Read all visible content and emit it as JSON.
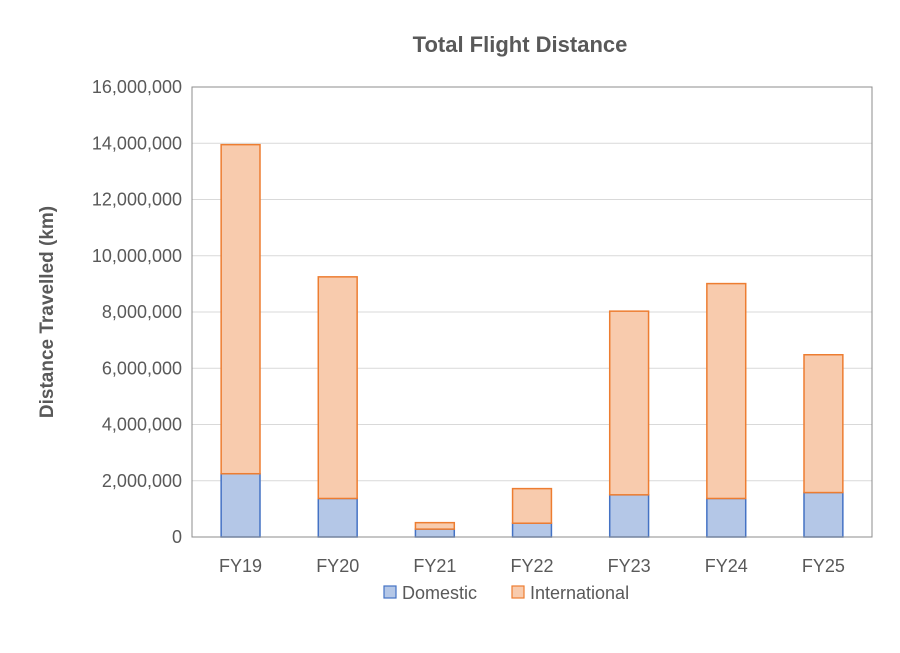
{
  "chart_data": {
    "type": "bar",
    "stacked": true,
    "title": "Total Flight Distance",
    "xlabel": "",
    "ylabel": "Distance Travelled (km)",
    "ylim": [
      0,
      16000000
    ],
    "ytick_step": 2000000,
    "grid": true,
    "legend_position": "bottom",
    "categories": [
      "FY19",
      "FY20",
      "FY21",
      "FY22",
      "FY23",
      "FY24",
      "FY25"
    ],
    "series": [
      {
        "name": "Domestic",
        "values": [
          2250000,
          1370000,
          280000,
          490000,
          1500000,
          1370000,
          1580000
        ],
        "color": "#b4c7e7",
        "stroke": "#4472c4"
      },
      {
        "name": "International",
        "values": [
          11700000,
          7880000,
          230000,
          1230000,
          6530000,
          7640000,
          4900000
        ],
        "color": "#f8cbad",
        "stroke": "#ed7d31"
      }
    ]
  }
}
